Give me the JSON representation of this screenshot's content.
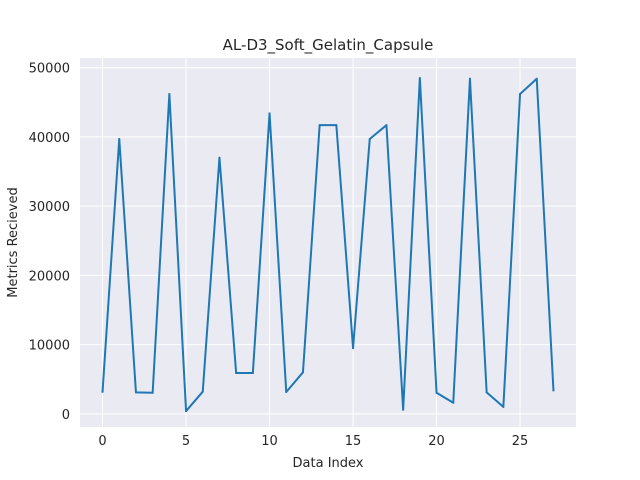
{
  "chart_data": {
    "type": "line",
    "title": "AL-D3_Soft_Gelatin_Capsule",
    "xlabel": "Data Index",
    "ylabel": "Metrics Recieved",
    "xlim": [
      -1.35,
      28.35
    ],
    "ylim": [
      -1900,
      51400
    ],
    "xticks": [
      0,
      5,
      10,
      15,
      20,
      25
    ],
    "yticks": [
      0,
      10000,
      20000,
      30000,
      40000,
      50000
    ],
    "grid": true,
    "legend": "none",
    "series": [
      {
        "color": "#1f77b4",
        "x": [
          0,
          1,
          2,
          3,
          4,
          5,
          6,
          7,
          8,
          9,
          10,
          11,
          12,
          13,
          14,
          15,
          16,
          17,
          18,
          19,
          20,
          21,
          22,
          23,
          24,
          25,
          26,
          27
        ],
        "values": [
          3200,
          39700,
          3100,
          3050,
          46200,
          400,
          3200,
          37000,
          5900,
          5900,
          43400,
          3150,
          6000,
          41700,
          41700,
          9500,
          39700,
          41700,
          600,
          48500,
          3050,
          1600,
          48400,
          3100,
          1000,
          46200,
          48400,
          3400
        ]
      }
    ]
  }
}
